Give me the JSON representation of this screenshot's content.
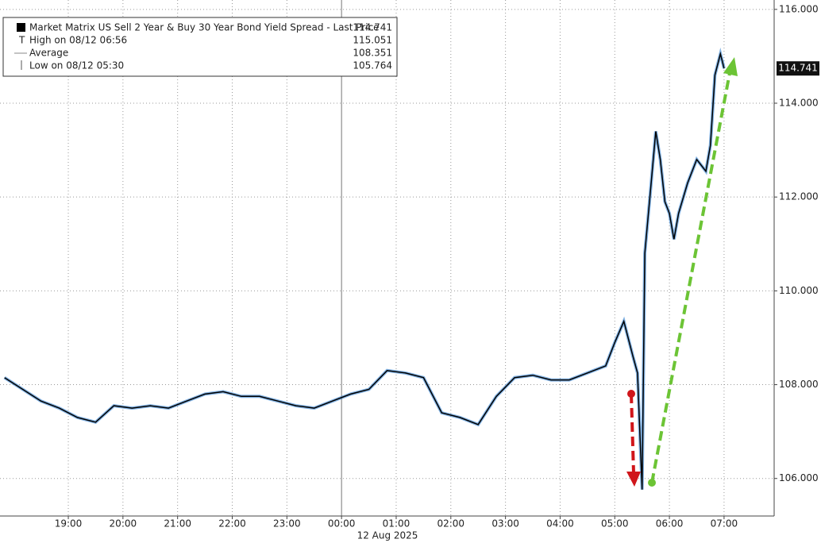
{
  "chart_data": {
    "type": "line",
    "legend": {
      "rows": [
        {
          "label": "Market Matrix US Sell 2 Year & Buy 30 Year Bond Yield Spread - Last Price",
          "value": 114.741
        },
        {
          "label": "High on 08/12 06:56",
          "value": 115.051
        },
        {
          "label": "Average",
          "value": 108.351
        },
        {
          "label": "Low on 08/12 05:30",
          "value": 105.764
        }
      ]
    },
    "date_label": "12 Aug 2025",
    "x": [
      "17:50",
      "18:10",
      "18:30",
      "18:50",
      "19:10",
      "19:30",
      "19:50",
      "20:10",
      "20:30",
      "20:50",
      "21:10",
      "21:30",
      "21:50",
      "22:10",
      "22:30",
      "22:50",
      "23:10",
      "23:30",
      "23:50",
      "00:10",
      "00:30",
      "00:50",
      "01:10",
      "01:30",
      "01:50",
      "02:10",
      "02:30",
      "02:50",
      "03:10",
      "03:30",
      "03:50",
      "04:10",
      "04:30",
      "04:50",
      "05:00",
      "05:10",
      "05:20",
      "05:25",
      "05:30",
      "05:33",
      "05:40",
      "05:45",
      "05:50",
      "05:55",
      "06:00",
      "06:05",
      "06:10",
      "06:20",
      "06:30",
      "06:40",
      "06:45",
      "06:50",
      "06:56",
      "06:58",
      "07:00"
    ],
    "series": [
      {
        "name": "Market Matrix US Sell 2 Year & Buy 30 Year Bond Yield Spread - Last Price",
        "color": "#000000",
        "values": [
          108.15,
          107.9,
          107.65,
          107.5,
          107.3,
          107.2,
          107.55,
          107.5,
          107.55,
          107.5,
          107.65,
          107.8,
          107.85,
          107.75,
          107.75,
          107.65,
          107.55,
          107.5,
          107.65,
          107.8,
          107.9,
          108.3,
          108.25,
          108.15,
          107.4,
          107.3,
          107.15,
          107.75,
          108.15,
          108.2,
          108.1,
          108.1,
          108.25,
          108.4,
          108.9,
          109.35,
          108.6,
          108.25,
          105.764,
          110.8,
          112.3,
          113.4,
          112.8,
          111.9,
          111.65,
          111.1,
          111.65,
          112.3,
          112.8,
          112.55,
          113.1,
          114.6,
          115.051,
          114.9,
          114.741
        ]
      }
    ],
    "last_price": 114.741,
    "xlim": [
      "17:45",
      "07:55"
    ],
    "xticks": [
      "19:00",
      "20:00",
      "21:00",
      "22:00",
      "23:00",
      "00:00",
      "01:00",
      "02:00",
      "03:00",
      "04:00",
      "05:00",
      "06:00",
      "07:00"
    ],
    "ylim": [
      105.2,
      116.2
    ],
    "yticks": [
      {
        "value": 106,
        "label": "106.000"
      },
      {
        "value": 108,
        "label": "108.000"
      },
      {
        "value": 110,
        "label": "110.000"
      },
      {
        "value": 112,
        "label": "112.000"
      },
      {
        "value": 114,
        "label": "114.000"
      },
      {
        "value": 116,
        "label": "116.000"
      }
    ],
    "grid": true
  }
}
